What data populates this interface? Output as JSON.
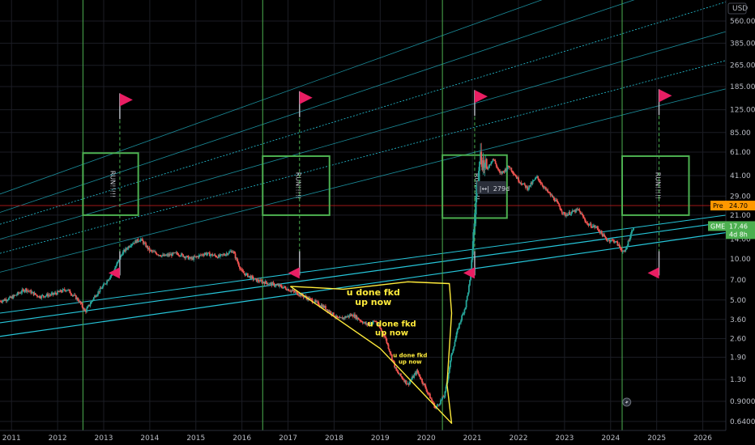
{
  "chart_data": {
    "type": "candlestick",
    "symbol": "GME",
    "currency": "USD",
    "log_scale": true,
    "xlim": [
      2010.75,
      2026.5
    ],
    "ylim": [
      0.55,
      800
    ],
    "y_ticks": [
      "560.00",
      "385.00",
      "265.00",
      "185.00",
      "125.00",
      "85.00",
      "61.00",
      "41.00",
      "29.00",
      "21.00",
      "14.00",
      "10.00",
      "7.00",
      "5.00",
      "3.60",
      "2.60",
      "1.90",
      "1.30",
      "0.9000",
      "0.6400"
    ],
    "y_tick_values": [
      560,
      385,
      265,
      185,
      125,
      85,
      61,
      41,
      29,
      21,
      14,
      10,
      7,
      5,
      3.6,
      2.6,
      1.9,
      1.3,
      0.9,
      0.64
    ],
    "x_ticks": [
      "2011",
      "2012",
      "2013",
      "2014",
      "2015",
      "2016",
      "2017",
      "2018",
      "2019",
      "2020",
      "2021",
      "2022",
      "2023",
      "2024",
      "2025",
      "2026"
    ],
    "x_tick_values": [
      2011,
      2012,
      2013,
      2014,
      2015,
      2016,
      2017,
      2018,
      2019,
      2020,
      2021,
      2022,
      2023,
      2024,
      2025,
      2026
    ],
    "price_path": [
      [
        2010.75,
        4.9
      ],
      [
        2011.0,
        5.2
      ],
      [
        2011.3,
        6.0
      ],
      [
        2011.6,
        5.3
      ],
      [
        2011.9,
        5.5
      ],
      [
        2012.2,
        6.0
      ],
      [
        2012.45,
        5.0
      ],
      [
        2012.6,
        4.1
      ],
      [
        2012.8,
        5.3
      ],
      [
        2013.0,
        6.4
      ],
      [
        2013.2,
        8.0
      ],
      [
        2013.4,
        11.0
      ],
      [
        2013.6,
        13.0
      ],
      [
        2013.8,
        14.0
      ],
      [
        2014.0,
        11.5
      ],
      [
        2014.3,
        10.5
      ],
      [
        2014.6,
        11.0
      ],
      [
        2014.9,
        10.0
      ],
      [
        2015.2,
        11.0
      ],
      [
        2015.5,
        10.4
      ],
      [
        2015.8,
        11.5
      ],
      [
        2016.0,
        8.0
      ],
      [
        2016.3,
        7.0
      ],
      [
        2016.6,
        6.6
      ],
      [
        2016.9,
        6.2
      ],
      [
        2017.1,
        5.8
      ],
      [
        2017.3,
        5.4
      ],
      [
        2017.5,
        5.0
      ],
      [
        2017.8,
        4.4
      ],
      [
        2018.1,
        3.6
      ],
      [
        2018.4,
        3.9
      ],
      [
        2018.7,
        3.3
      ],
      [
        2018.9,
        3.5
      ],
      [
        2019.1,
        2.7
      ],
      [
        2019.35,
        1.5
      ],
      [
        2019.6,
        1.2
      ],
      [
        2019.8,
        1.5
      ],
      [
        2020.0,
        1.1
      ],
      [
        2020.2,
        0.8
      ],
      [
        2020.4,
        1.0
      ],
      [
        2020.55,
        2.0
      ],
      [
        2020.7,
        3.2
      ],
      [
        2020.85,
        4.5
      ],
      [
        2020.95,
        7.0
      ],
      [
        2021.05,
        20.0
      ],
      [
        2021.15,
        60.0
      ],
      [
        2021.3,
        45.0
      ],
      [
        2021.45,
        55.0
      ],
      [
        2021.6,
        42.0
      ],
      [
        2021.8,
        48.0
      ],
      [
        2022.0,
        38.0
      ],
      [
        2022.2,
        33.0
      ],
      [
        2022.4,
        40.0
      ],
      [
        2022.6,
        32.0
      ],
      [
        2022.8,
        27.0
      ],
      [
        2023.0,
        21.0
      ],
      [
        2023.3,
        23.0
      ],
      [
        2023.5,
        18.0
      ],
      [
        2023.7,
        17.0
      ],
      [
        2023.9,
        14.0
      ],
      [
        2024.1,
        13.5
      ],
      [
        2024.3,
        11.0
      ],
      [
        2024.4,
        14.0
      ],
      [
        2024.5,
        17.5
      ]
    ],
    "last_price_label": "17.46",
    "last_price_countdown": "4d 8h",
    "symbol_tag": "GME",
    "pre_market_label": "Pre",
    "pre_market_value": "24.70",
    "measure_label": "279d",
    "cycle_lines_x": [
      2012.55,
      2016.45,
      2020.35,
      2024.25
    ],
    "run_boxes": [
      {
        "x0": 2012.55,
        "x1": 2013.75,
        "ylow": 21,
        "yhigh": 60,
        "label": "RUN!!!!!"
      },
      {
        "x0": 2016.45,
        "x1": 2017.9,
        "ylow": 21,
        "yhigh": 57,
        "label": "RUN!!!!!"
      },
      {
        "x0": 2020.35,
        "x1": 2021.75,
        "ylow": 20,
        "yhigh": 58,
        "label": "RUN!!!!!"
      },
      {
        "x0": 2024.25,
        "x1": 2025.7,
        "ylow": 21,
        "yhigh": 57,
        "label": "RUN!!!!!"
      }
    ],
    "flags_up": [
      {
        "x": 2013.35,
        "y": 140
      },
      {
        "x": 2017.25,
        "y": 145
      },
      {
        "x": 2021.05,
        "y": 148
      },
      {
        "x": 2025.05,
        "y": 150
      }
    ],
    "flags_down": [
      {
        "x": 2013.35,
        "y": 8.0
      },
      {
        "x": 2017.25,
        "y": 8.0
      },
      {
        "x": 2021.05,
        "y": 8.0
      },
      {
        "x": 2025.05,
        "y": 8.0
      }
    ],
    "annotations": [
      {
        "text_lines": [
          "u done fkd",
          "up now"
        ],
        "x": 2018.85,
        "y": 5.4,
        "size": 11
      },
      {
        "text_lines": [
          "u done fkd",
          "up now"
        ],
        "x": 2019.25,
        "y": 3.2,
        "size": 10
      },
      {
        "text_lines": [
          "u done fkd",
          "up now"
        ],
        "x": 2019.65,
        "y": 1.9,
        "size": 7
      }
    ],
    "grid": true,
    "legend": "none"
  },
  "icons": {
    "lightning": "lightning-icon",
    "ruler": "measure-icon"
  },
  "colors": {
    "background": "#000000",
    "grid": "#1b1d24",
    "candle_up": "#26a69a",
    "candle_down": "#ef5350",
    "cycle_line": "#4caf50",
    "run_box": "#4caf50",
    "trend": "#26c6da",
    "flag": "#e91e63",
    "annotation": "#ffeb3b",
    "price_line": "#b71c1c",
    "last_price_bg": "#4caf50",
    "pre_bg": "#ff9800"
  }
}
